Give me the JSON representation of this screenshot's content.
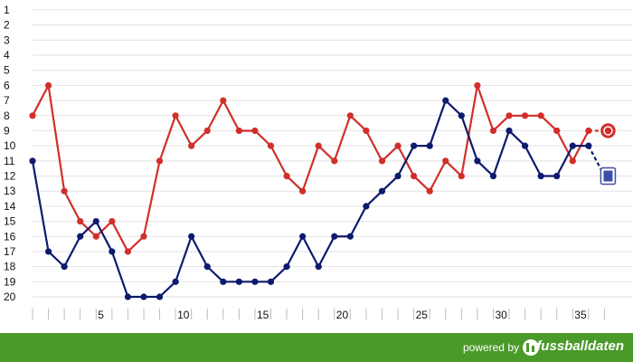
{
  "chart_data": {
    "type": "line",
    "title": "",
    "xlabel": "",
    "ylabel": "",
    "x": [
      1,
      2,
      3,
      4,
      5,
      6,
      7,
      8,
      9,
      10,
      11,
      12,
      13,
      14,
      15,
      16,
      17,
      18,
      19,
      20,
      21,
      22,
      23,
      24,
      25,
      26,
      27,
      28,
      29,
      30,
      31,
      32,
      33,
      34,
      35,
      36,
      37
    ],
    "x_tick_labels": [
      "5",
      "10",
      "15",
      "20",
      "25",
      "30",
      "35"
    ],
    "x_tick_values": [
      5,
      10,
      15,
      20,
      25,
      30,
      35
    ],
    "xlim": [
      1,
      38
    ],
    "ylim": [
      1,
      20
    ],
    "y_reversed": true,
    "y_ticks": [
      1,
      2,
      3,
      4,
      5,
      6,
      7,
      8,
      9,
      10,
      11,
      12,
      13,
      14,
      15,
      16,
      17,
      18,
      19,
      20
    ],
    "grid": "horizontal",
    "series": [
      {
        "color": "#d12f2a",
        "icon": "red-club-crest-icon",
        "values": [
          8,
          6,
          13,
          15,
          16,
          15,
          17,
          16,
          11,
          8,
          10,
          9,
          7,
          9,
          9,
          10,
          12,
          13,
          10,
          11,
          8,
          9,
          11,
          10,
          12,
          13,
          11,
          12,
          6,
          9,
          8,
          8,
          8,
          9,
          11,
          9,
          9
        ]
      },
      {
        "color": "#0d1a6e",
        "icon": "blue-club-crest-icon",
        "values": [
          11,
          17,
          18,
          16,
          15,
          17,
          20,
          20,
          20,
          19,
          16,
          18,
          19,
          19,
          19,
          19,
          18,
          16,
          18,
          16,
          16,
          14,
          13,
          12,
          10,
          10,
          7,
          8,
          11,
          12,
          9,
          10,
          12,
          12,
          10,
          10,
          12
        ]
      }
    ]
  },
  "footer": {
    "powered_label": "powered by",
    "brand_icon": "fussballdaten-logo-icon",
    "brand_name": "fussballdaten",
    "background": "#4a9a2a"
  }
}
